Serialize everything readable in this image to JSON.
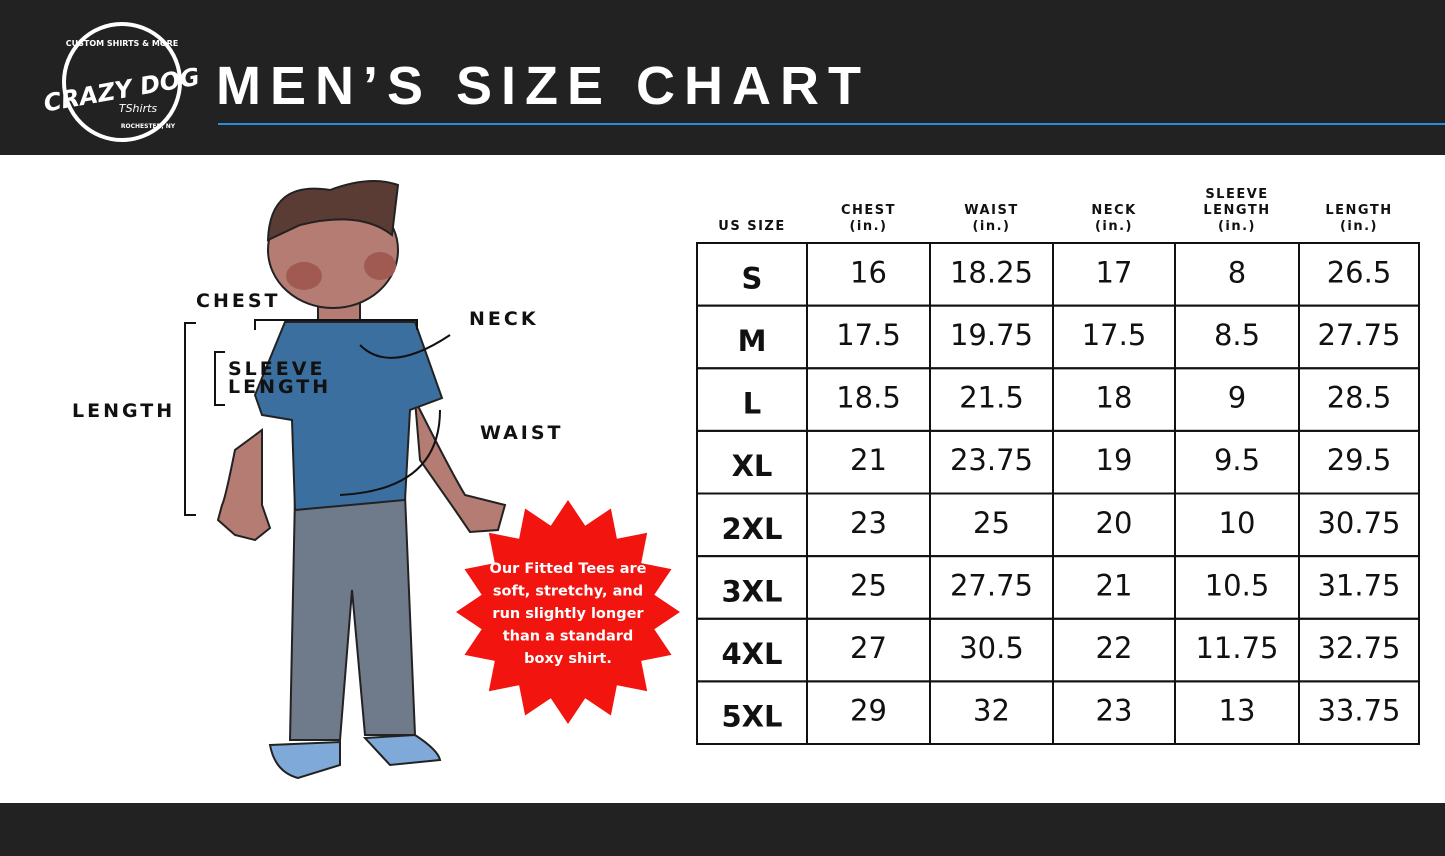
{
  "header": {
    "logo": {
      "top": "CUSTOM SHIRTS & MORE",
      "name": "CRAZY DOG",
      "sub": "TShirts",
      "bottom": "ROCHESTER, NY"
    },
    "title": "MEN’S SIZE CHART"
  },
  "diagram": {
    "labels": {
      "chest": "CHEST",
      "neck": "NECK",
      "sleeve": [
        "SLEEVE",
        "LENGTH"
      ],
      "length": "LENGTH",
      "waist": "WAIST"
    },
    "badge": [
      "Our Fitted Tees are",
      "soft, stretchy, and",
      "run slightly longer",
      "than a standard",
      "boxy shirt."
    ]
  },
  "table": {
    "columns": [
      {
        "label": [
          "US SIZE"
        ]
      },
      {
        "label": [
          "CHEST"
        ],
        "unit": "(in.)"
      },
      {
        "label": [
          "WAIST"
        ],
        "unit": "(in.)"
      },
      {
        "label": [
          "NECK"
        ],
        "unit": "(in.)"
      },
      {
        "label": [
          "SLEEVE",
          "LENGTH"
        ],
        "unit": "(in.)"
      },
      {
        "label": [
          "LENGTH"
        ],
        "unit": "(in.)"
      }
    ],
    "rows": [
      [
        "S",
        "16",
        "18.25",
        "17",
        "8",
        "26.5"
      ],
      [
        "M",
        "17.5",
        "19.75",
        "17.5",
        "8.5",
        "27.75"
      ],
      [
        "L",
        "18.5",
        "21.5",
        "18",
        "9",
        "28.5"
      ],
      [
        "XL",
        "21",
        "23.75",
        "19",
        "9.5",
        "29.5"
      ],
      [
        "2XL",
        "23",
        "25",
        "20",
        "10",
        "30.75"
      ],
      [
        "3XL",
        "25",
        "27.75",
        "21",
        "10.5",
        "31.75"
      ],
      [
        "4XL",
        "27",
        "30.5",
        "22",
        "11.75",
        "32.75"
      ],
      [
        "5XL",
        "29",
        "32",
        "23",
        "13",
        "33.75"
      ]
    ]
  }
}
